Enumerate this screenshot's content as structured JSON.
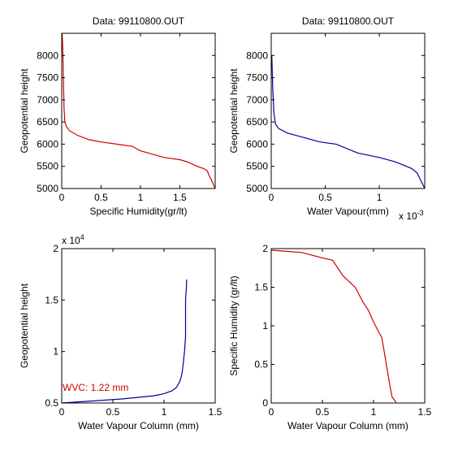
{
  "chart_data": [
    {
      "type": "line",
      "title": "Data: 99110800.OUT",
      "xlabel": "Specific Humidity(gr/lt)",
      "ylabel": "Geopotential height",
      "xlim": [
        0,
        1.95
      ],
      "ylim": [
        5000,
        8500
      ],
      "xticks": [
        0,
        0.5,
        1,
        1.5
      ],
      "xtick_labels": [
        "0",
        "0.5",
        "1",
        "1.5"
      ],
      "yticks": [
        5000,
        5500,
        6000,
        6500,
        7000,
        7500,
        8000
      ],
      "ytick_labels": [
        "5000",
        "5500",
        "6000",
        "6500",
        "7000",
        "7500",
        "8000"
      ],
      "x_exponent": "",
      "y_exponent": "",
      "series": [
        {
          "color": "#cc0000",
          "x": [
            1.95,
            1.9,
            1.87,
            1.85,
            1.8,
            1.72,
            1.6,
            1.5,
            1.3,
            1.1,
            1.0,
            0.9,
            0.7,
            0.5,
            0.35,
            0.2,
            0.1,
            0.06,
            0.04,
            0.03,
            0.025,
            0.02,
            0.015,
            0.01,
            0.005
          ],
          "y": [
            5000,
            5200,
            5300,
            5400,
            5450,
            5500,
            5600,
            5650,
            5700,
            5800,
            5850,
            5950,
            6000,
            6050,
            6100,
            6200,
            6300,
            6400,
            6500,
            6800,
            7200,
            7600,
            8000,
            8300,
            8500
          ]
        }
      ]
    },
    {
      "type": "line",
      "title": "Data: 99110800.OUT",
      "xlabel": "Water Vapour(mm)",
      "ylabel": "Geopotential height",
      "xlim": [
        0,
        1.42
      ],
      "ylim": [
        5000,
        8500
      ],
      "xticks": [
        0,
        0.5,
        1
      ],
      "xtick_labels": [
        "0",
        "0.5",
        "1"
      ],
      "yticks": [
        5000,
        5500,
        6000,
        6500,
        7000,
        7500,
        8000
      ],
      "ytick_labels": [
        "5000",
        "5500",
        "6000",
        "6500",
        "7000",
        "7500",
        "8000"
      ],
      "x_exponent": "x 10-3",
      "y_exponent": "",
      "series": [
        {
          "color": "#000099",
          "x": [
            1.42,
            1.38,
            1.35,
            1.3,
            1.25,
            1.15,
            1.0,
            0.8,
            0.6,
            0.45,
            0.3,
            0.15,
            0.07,
            0.04,
            0.025,
            0.015,
            0.01,
            0.005
          ],
          "y": [
            5000,
            5200,
            5350,
            5450,
            5500,
            5600,
            5700,
            5800,
            6000,
            6050,
            6150,
            6250,
            6350,
            6450,
            6700,
            7200,
            7600,
            8000
          ]
        }
      ]
    },
    {
      "type": "line",
      "title": "",
      "xlabel": "Water Vapour Column (mm)",
      "ylabel": "Geopotential height",
      "xlim": [
        0,
        1.5
      ],
      "ylim": [
        5000,
        20000
      ],
      "xticks": [
        0,
        0.5,
        1,
        1.5
      ],
      "xtick_labels": [
        "0",
        "0.5",
        "1",
        "1.5"
      ],
      "yticks": [
        5000,
        10000,
        15000,
        20000
      ],
      "ytick_labels": [
        "0.5",
        "1",
        "1.5",
        "2"
      ],
      "x_exponent": "",
      "y_exponent": "x 10^4",
      "annotation": "WVC: 1.22 mm",
      "annotation_color": "#cc0000",
      "series": [
        {
          "color": "#000099",
          "x": [
            0,
            0.3,
            0.6,
            0.9,
            1.0,
            1.08,
            1.12,
            1.15,
            1.17,
            1.18,
            1.19,
            1.2,
            1.21,
            1.21,
            1.21,
            1.22,
            1.22
          ],
          "y": [
            5000,
            5200,
            5400,
            5700,
            5900,
            6200,
            6500,
            7000,
            7600,
            8200,
            9000,
            10000,
            11500,
            13000,
            15000,
            16500,
            17000
          ]
        }
      ]
    },
    {
      "type": "line",
      "title": "",
      "xlabel": "Water Vapour Column (mm)",
      "ylabel": "Specific Humidity (gr/lt)",
      "xlim": [
        0,
        1.5
      ],
      "ylim": [
        0,
        2
      ],
      "xticks": [
        0,
        0.5,
        1,
        1.5
      ],
      "xtick_labels": [
        "0",
        "0.5",
        "1",
        "1.5"
      ],
      "yticks": [
        0,
        0.5,
        1,
        1.5,
        2
      ],
      "ytick_labels": [
        "0",
        "0.5",
        "1",
        "1.5",
        "2"
      ],
      "x_exponent": "",
      "y_exponent": "",
      "series": [
        {
          "color": "#cc0000",
          "x": [
            0,
            0.1,
            0.3,
            0.5,
            0.6,
            0.7,
            0.78,
            0.82,
            0.9,
            0.95,
            1.0,
            1.05,
            1.08,
            1.1,
            1.15,
            1.18,
            1.22
          ],
          "y": [
            1.98,
            1.97,
            1.95,
            1.88,
            1.85,
            1.65,
            1.55,
            1.5,
            1.3,
            1.2,
            1.05,
            0.92,
            0.85,
            0.7,
            0.3,
            0.08,
            0.01
          ]
        }
      ]
    }
  ]
}
